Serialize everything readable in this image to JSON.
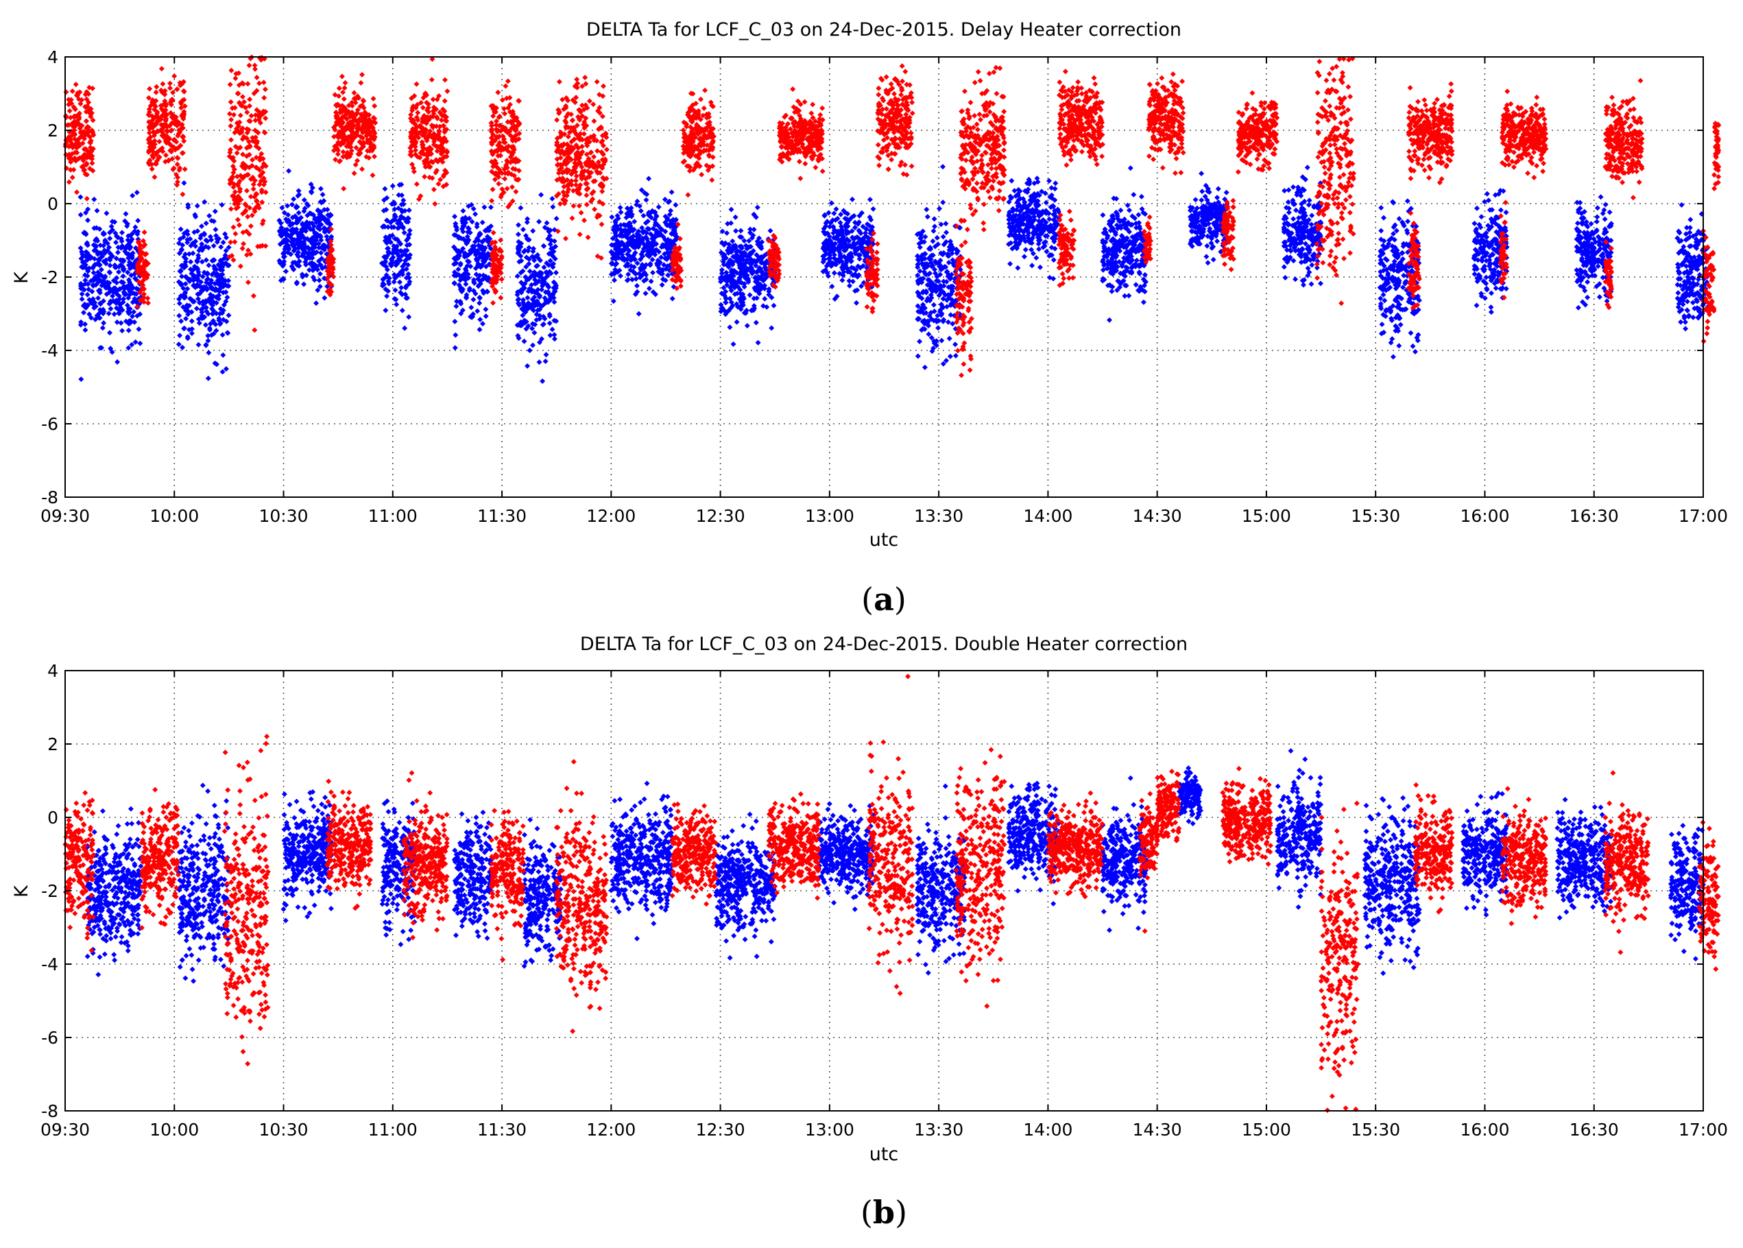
{
  "chart_data": [
    {
      "type": "scatter",
      "panel_label": "a",
      "title": "DELTA Ta for LCF_C_03 on 24-Dec-2015. Delay Heater correction",
      "xlabel": "utc",
      "ylabel": "K",
      "xlim": [
        "09:30",
        "17:00"
      ],
      "ylim": [
        -8,
        4
      ],
      "grid": true,
      "xticks": [
        "09:30",
        "10:00",
        "10:30",
        "11:00",
        "11:30",
        "12:00",
        "12:30",
        "13:00",
        "13:30",
        "14:00",
        "14:30",
        "15:00",
        "15:30",
        "16:00",
        "16:30",
        "17:00"
      ],
      "yticks": [
        -8,
        -6,
        -4,
        -2,
        0,
        2,
        4
      ],
      "series": [
        {
          "name": "blue",
          "color": "#0000ff",
          "clusters": [
            {
              "x": [
                9.57,
                9.85
              ],
              "c": -2.0,
              "s": 0.8
            },
            {
              "x": [
                10.02,
                10.25
              ],
              "c": -2.2,
              "s": 0.9
            },
            {
              "x": [
                10.48,
                10.72
              ],
              "c": -1.0,
              "s": 0.6
            },
            {
              "x": [
                10.95,
                11.08
              ],
              "c": -1.3,
              "s": 0.8
            },
            {
              "x": [
                11.28,
                11.45
              ],
              "c": -1.6,
              "s": 0.7
            },
            {
              "x": [
                11.57,
                11.75
              ],
              "c": -2.2,
              "s": 0.9
            },
            {
              "x": [
                12.0,
                12.3
              ],
              "c": -1.2,
              "s": 0.6
            },
            {
              "x": [
                12.5,
                12.75
              ],
              "c": -1.8,
              "s": 0.6
            },
            {
              "x": [
                12.97,
                13.2
              ],
              "c": -1.2,
              "s": 0.5
            },
            {
              "x": [
                13.4,
                13.6
              ],
              "c": -2.2,
              "s": 0.9
            },
            {
              "x": [
                13.82,
                14.05
              ],
              "c": -0.5,
              "s": 0.5
            },
            {
              "x": [
                14.25,
                14.45
              ],
              "c": -1.3,
              "s": 0.6
            },
            {
              "x": [
                14.65,
                14.82
              ],
              "c": -0.5,
              "s": 0.4
            },
            {
              "x": [
                15.08,
                15.25
              ],
              "c": -0.8,
              "s": 0.6
            },
            {
              "x": [
                15.52,
                15.7
              ],
              "c": -2.0,
              "s": 0.8
            },
            {
              "x": [
                15.95,
                16.1
              ],
              "c": -1.3,
              "s": 0.6
            },
            {
              "x": [
                16.42,
                16.58
              ],
              "c": -1.3,
              "s": 0.6
            },
            {
              "x": [
                16.88,
                17.02
              ],
              "c": -2.0,
              "s": 0.7
            }
          ]
        },
        {
          "name": "red",
          "color": "#ff0000",
          "clusters": [
            {
              "x": [
                9.5,
                9.63
              ],
              "c": 1.9,
              "s": 0.6
            },
            {
              "x": [
                9.83,
                9.88
              ],
              "c": -1.8,
              "s": 0.5
            },
            {
              "x": [
                9.88,
                10.05
              ],
              "c": 2.0,
              "s": 0.6
            },
            {
              "x": [
                10.25,
                10.42
              ],
              "c": 1.2,
              "s": 1.4
            },
            {
              "x": [
                10.7,
                10.73
              ],
              "c": -1.7,
              "s": 0.4
            },
            {
              "x": [
                10.73,
                10.92
              ],
              "c": 2.1,
              "s": 0.5
            },
            {
              "x": [
                11.08,
                11.25
              ],
              "c": 1.8,
              "s": 0.6
            },
            {
              "x": [
                11.45,
                11.5
              ],
              "c": -1.7,
              "s": 0.4
            },
            {
              "x": [
                11.45,
                11.58
              ],
              "c": 1.6,
              "s": 0.7
            },
            {
              "x": [
                11.75,
                11.98
              ],
              "c": 1.3,
              "s": 0.9
            },
            {
              "x": [
                12.28,
                12.32
              ],
              "c": -1.7,
              "s": 0.3
            },
            {
              "x": [
                12.33,
                12.47
              ],
              "c": 1.8,
              "s": 0.5
            },
            {
              "x": [
                12.72,
                12.77
              ],
              "c": -1.5,
              "s": 0.3
            },
            {
              "x": [
                12.77,
                12.97
              ],
              "c": 1.8,
              "s": 0.4
            },
            {
              "x": [
                13.17,
                13.22
              ],
              "c": -2.0,
              "s": 0.4
            },
            {
              "x": [
                13.22,
                13.38
              ],
              "c": 2.2,
              "s": 0.6
            },
            {
              "x": [
                13.58,
                13.65
              ],
              "c": -2.5,
              "s": 0.8
            },
            {
              "x": [
                13.6,
                13.8
              ],
              "c": 1.5,
              "s": 0.8
            },
            {
              "x": [
                14.05,
                14.12
              ],
              "c": -1.2,
              "s": 0.4
            },
            {
              "x": [
                14.05,
                14.25
              ],
              "c": 2.2,
              "s": 0.5
            },
            {
              "x": [
                14.44,
                14.47
              ],
              "c": -1.0,
              "s": 0.3
            },
            {
              "x": [
                14.46,
                14.62
              ],
              "c": 2.3,
              "s": 0.5
            },
            {
              "x": [
                14.8,
                14.85
              ],
              "c": -0.8,
              "s": 0.4
            },
            {
              "x": [
                14.87,
                15.05
              ],
              "c": 1.9,
              "s": 0.4
            },
            {
              "x": [
                15.23,
                15.4
              ],
              "c": 1.0,
              "s": 1.4
            },
            {
              "x": [
                15.65,
                15.7
              ],
              "c": -1.8,
              "s": 0.6
            },
            {
              "x": [
                15.65,
                15.85
              ],
              "c": 1.9,
              "s": 0.5
            },
            {
              "x": [
                16.07,
                16.1
              ],
              "c": -1.5,
              "s": 0.4
            },
            {
              "x": [
                16.08,
                16.28
              ],
              "c": 1.9,
              "s": 0.4
            },
            {
              "x": [
                16.55,
                16.58
              ],
              "c": -2.0,
              "s": 0.4
            },
            {
              "x": [
                16.55,
                16.72
              ],
              "c": 1.7,
              "s": 0.5
            },
            {
              "x": [
                17.0,
                17.05
              ],
              "c": -2.2,
              "s": 0.6
            },
            {
              "x": [
                17.05,
                17.07
              ],
              "c": 1.5,
              "s": 0.5
            }
          ]
        }
      ]
    },
    {
      "type": "scatter",
      "panel_label": "b",
      "title": "DELTA Ta for LCF_C_03 on 24-Dec-2015. Double Heater correction",
      "xlabel": "utc",
      "ylabel": "K",
      "xlim": [
        "09:30",
        "17:00"
      ],
      "ylim": [
        -8,
        4
      ],
      "grid": true,
      "xticks": [
        "09:30",
        "10:00",
        "10:30",
        "11:00",
        "11:30",
        "12:00",
        "12:30",
        "13:00",
        "13:30",
        "14:00",
        "14:30",
        "15:00",
        "15:30",
        "16:00",
        "16:30",
        "17:00"
      ],
      "yticks": [
        -8,
        -6,
        -4,
        -2,
        0,
        2,
        4
      ],
      "series": [
        {
          "name": "blue",
          "color": "#0000ff",
          "clusters": [
            {
              "x": [
                9.6,
                9.85
              ],
              "c": -2.0,
              "s": 0.8
            },
            {
              "x": [
                10.02,
                10.25
              ],
              "c": -2.0,
              "s": 0.9
            },
            {
              "x": [
                10.5,
                10.72
              ],
              "c": -1.0,
              "s": 0.6
            },
            {
              "x": [
                10.95,
                11.1
              ],
              "c": -1.4,
              "s": 0.8
            },
            {
              "x": [
                11.28,
                11.45
              ],
              "c": -1.6,
              "s": 0.7
            },
            {
              "x": [
                11.6,
                11.77
              ],
              "c": -2.2,
              "s": 0.8
            },
            {
              "x": [
                12.0,
                12.28
              ],
              "c": -1.2,
              "s": 0.7
            },
            {
              "x": [
                12.48,
                12.75
              ],
              "c": -1.8,
              "s": 0.6
            },
            {
              "x": [
                12.95,
                13.2
              ],
              "c": -1.0,
              "s": 0.5
            },
            {
              "x": [
                13.4,
                13.62
              ],
              "c": -2.0,
              "s": 0.8
            },
            {
              "x": [
                13.82,
                14.05
              ],
              "c": -0.5,
              "s": 0.6
            },
            {
              "x": [
                14.25,
                14.45
              ],
              "c": -1.2,
              "s": 0.6
            },
            {
              "x": [
                14.6,
                14.7
              ],
              "c": 0.6,
              "s": 0.3
            },
            {
              "x": [
                15.05,
                15.25
              ],
              "c": -0.5,
              "s": 0.7
            },
            {
              "x": [
                15.45,
                15.7
              ],
              "c": -1.8,
              "s": 0.9
            },
            {
              "x": [
                15.9,
                16.1
              ],
              "c": -1.0,
              "s": 0.6
            },
            {
              "x": [
                16.33,
                16.58
              ],
              "c": -1.2,
              "s": 0.6
            },
            {
              "x": [
                16.85,
                17.0
              ],
              "c": -1.8,
              "s": 0.7
            }
          ]
        },
        {
          "name": "red",
          "color": "#ff0000",
          "clusters": [
            {
              "x": [
                9.5,
                9.63
              ],
              "c": -1.3,
              "s": 0.8
            },
            {
              "x": [
                9.85,
                10.02
              ],
              "c": -1.2,
              "s": 0.7
            },
            {
              "x": [
                10.23,
                10.43
              ],
              "c": -2.5,
              "s": 1.8
            },
            {
              "x": [
                10.7,
                10.9
              ],
              "c": -0.8,
              "s": 0.6
            },
            {
              "x": [
                11.05,
                11.25
              ],
              "c": -1.3,
              "s": 0.7
            },
            {
              "x": [
                11.45,
                11.6
              ],
              "c": -1.5,
              "s": 0.7
            },
            {
              "x": [
                11.75,
                11.98
              ],
              "c": -2.3,
              "s": 1.2
            },
            {
              "x": [
                12.28,
                12.48
              ],
              "c": -1.0,
              "s": 0.5
            },
            {
              "x": [
                12.72,
                12.95
              ],
              "c": -0.8,
              "s": 0.5
            },
            {
              "x": [
                13.18,
                13.38
              ],
              "c": -1.3,
              "s": 1.2
            },
            {
              "x": [
                13.58,
                13.8
              ],
              "c": -1.5,
              "s": 1.3
            },
            {
              "x": [
                14.0,
                14.25
              ],
              "c": -0.8,
              "s": 0.5
            },
            {
              "x": [
                14.42,
                14.5
              ],
              "c": -0.7,
              "s": 0.5
            },
            {
              "x": [
                14.5,
                14.6
              ],
              "c": 0.3,
              "s": 0.4
            },
            {
              "x": [
                14.8,
                15.02
              ],
              "c": -0.1,
              "s": 0.5
            },
            {
              "x": [
                15.25,
                15.42
              ],
              "c": -3.8,
              "s": 1.6
            },
            {
              "x": [
                15.68,
                15.85
              ],
              "c": -0.9,
              "s": 0.6
            },
            {
              "x": [
                16.08,
                16.28
              ],
              "c": -1.2,
              "s": 0.6
            },
            {
              "x": [
                16.55,
                16.75
              ],
              "c": -1.3,
              "s": 0.7
            },
            {
              "x": [
                16.98,
                17.07
              ],
              "c": -2.2,
              "s": 0.8
            }
          ]
        }
      ]
    }
  ]
}
